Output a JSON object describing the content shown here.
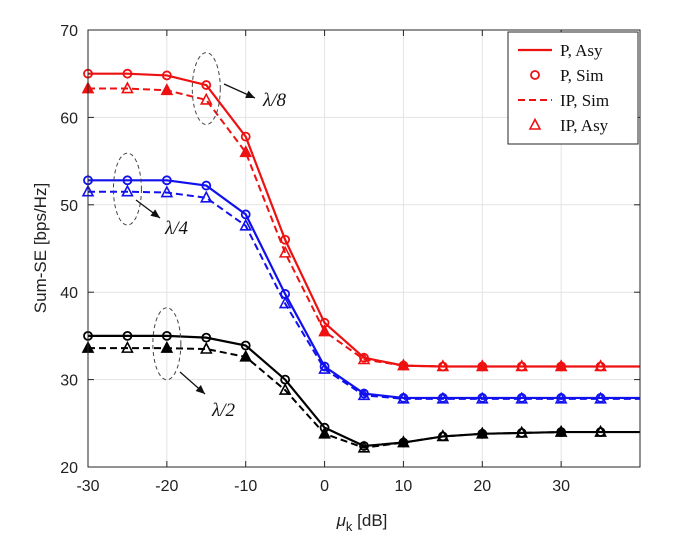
{
  "chart_data": {
    "type": "line",
    "xlabel_main": "μ",
    "xlabel_sub": "k",
    "xlabel_unit": " [dB]",
    "ylabel": "Sum-SE [bps/Hz]",
    "xlim": [
      -30,
      40
    ],
    "ylim": [
      20,
      70
    ],
    "xticks": [
      -30,
      -20,
      -10,
      0,
      10,
      20,
      30
    ],
    "yticks": [
      20,
      30,
      40,
      50,
      60,
      70
    ],
    "grid": true,
    "colors": {
      "red": "#ee1111",
      "blue": "#1111ee",
      "black": "#000000"
    },
    "x": [
      -30,
      -25,
      -20,
      -15,
      -10,
      -5,
      0,
      5,
      10,
      15,
      20,
      25,
      30,
      35,
      40
    ],
    "groups": [
      {
        "name": "λ/8",
        "color": "red",
        "P": [
          65.0,
          65.0,
          64.8,
          63.7,
          57.8,
          46.0,
          36.5,
          32.5,
          31.6,
          31.5,
          31.5,
          31.5,
          31.5,
          31.5,
          31.5
        ],
        "IP": [
          63.3,
          63.3,
          63.1,
          62.0,
          56.0,
          44.5,
          35.5,
          32.3,
          31.6,
          31.5,
          31.5,
          31.5,
          31.5,
          31.5,
          31.5
        ]
      },
      {
        "name": "λ/4",
        "color": "blue",
        "P": [
          52.8,
          52.8,
          52.8,
          52.2,
          48.9,
          39.8,
          31.5,
          28.4,
          27.9,
          27.9,
          27.9,
          27.9,
          27.9,
          27.9,
          27.9
        ],
        "IP": [
          51.5,
          51.5,
          51.4,
          50.8,
          47.6,
          38.7,
          31.2,
          28.2,
          27.8,
          27.8,
          27.8,
          27.8,
          27.8,
          27.8,
          27.8
        ]
      },
      {
        "name": "λ/2",
        "color": "black",
        "P": [
          35.0,
          35.0,
          35.0,
          34.8,
          33.9,
          30.0,
          24.5,
          22.4,
          22.8,
          23.5,
          23.8,
          23.9,
          24.0,
          24.0,
          24.0
        ],
        "IP": [
          33.6,
          33.6,
          33.6,
          33.5,
          32.6,
          28.8,
          23.8,
          22.2,
          22.8,
          23.5,
          23.8,
          23.9,
          24.0,
          24.0,
          24.0
        ]
      }
    ],
    "marker_x": [
      -30,
      -25,
      -20,
      -15,
      -10,
      -5,
      0,
      5,
      10,
      15,
      20,
      25,
      30,
      35
    ],
    "legend": [
      {
        "label": "P, Asy",
        "style": "solid-line"
      },
      {
        "label": "P, Sim",
        "style": "circle"
      },
      {
        "label": "IP, Sim",
        "style": "dashed-line"
      },
      {
        "label": "IP, Asy",
        "style": "triangle"
      }
    ],
    "legend_position": "top-right",
    "annotations": [
      {
        "text": "λ/8",
        "group": 0
      },
      {
        "text": "λ/4",
        "group": 1
      },
      {
        "text": "λ/2",
        "group": 2
      }
    ]
  }
}
